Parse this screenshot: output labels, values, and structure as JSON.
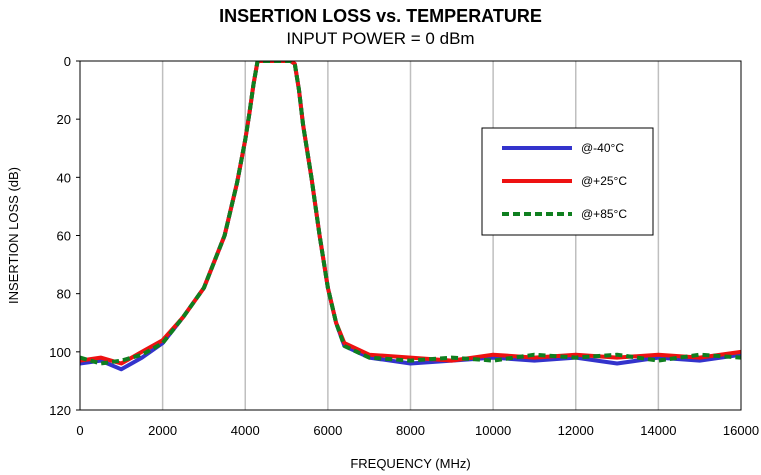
{
  "chart_data": {
    "type": "line",
    "title": "INSERTION LOSS vs. TEMPERATURE",
    "subtitle": "INPUT POWER = 0 dBm",
    "xlabel": "FREQUENCY (MHz)",
    "ylabel": "INSERTION LOSS (dB)",
    "xlim": [
      0,
      16000
    ],
    "ylim": [
      0,
      120
    ],
    "y_inverted": true,
    "xticks": [
      0,
      2000,
      4000,
      6000,
      8000,
      10000,
      12000,
      14000,
      16000
    ],
    "yticks": [
      0,
      20,
      40,
      60,
      80,
      100,
      120
    ],
    "grid": "vertical",
    "legend_position": "right",
    "series": [
      {
        "name": "@-40°C",
        "color": "#3333cc",
        "style": "solid",
        "x": [
          0,
          500,
          1000,
          1500,
          2000,
          2500,
          3000,
          3500,
          3800,
          4000,
          4100,
          4200,
          4300,
          5100,
          5200,
          5300,
          5400,
          5600,
          5800,
          6000,
          6200,
          6400,
          7000,
          8000,
          9000,
          10000,
          11000,
          12000,
          13000,
          14000,
          15000,
          16000
        ],
        "y": [
          104,
          103,
          106,
          102,
          97,
          88,
          78,
          60,
          42,
          27,
          18,
          8,
          0,
          0,
          1,
          10,
          22,
          40,
          60,
          78,
          90,
          98,
          102,
          104,
          103,
          102,
          103,
          102,
          104,
          102,
          103,
          101
        ]
      },
      {
        "name": "@+25°C",
        "color": "#ee1111",
        "style": "solid",
        "x": [
          0,
          500,
          1000,
          1500,
          2000,
          2500,
          3000,
          3500,
          3800,
          4000,
          4100,
          4200,
          4300,
          5100,
          5200,
          5300,
          5400,
          5600,
          5800,
          6000,
          6200,
          6400,
          7000,
          8000,
          9000,
          10000,
          11000,
          12000,
          13000,
          14000,
          15000,
          16000
        ],
        "y": [
          103,
          102,
          104,
          100,
          96,
          88,
          78,
          60,
          42,
          27,
          18,
          8,
          0,
          0,
          1,
          10,
          22,
          40,
          60,
          78,
          90,
          97,
          101,
          102,
          103,
          101,
          102,
          101,
          102,
          101,
          102,
          100
        ]
      },
      {
        "name": "@+85°C",
        "color": "#0f7f1f",
        "style": "dashed",
        "x": [
          0,
          500,
          1000,
          1500,
          2000,
          2500,
          3000,
          3500,
          3800,
          4000,
          4100,
          4200,
          4300,
          5100,
          5200,
          5300,
          5400,
          5600,
          5800,
          6000,
          6200,
          6400,
          7000,
          8000,
          9000,
          10000,
          11000,
          12000,
          13000,
          14000,
          15000,
          16000
        ],
        "y": [
          102,
          104,
          103,
          101,
          97,
          88,
          78,
          60,
          42,
          27,
          18,
          8,
          0,
          0,
          1,
          10,
          22,
          40,
          60,
          78,
          90,
          98,
          102,
          103,
          102,
          103,
          101,
          102,
          101,
          103,
          101,
          102
        ]
      }
    ]
  }
}
